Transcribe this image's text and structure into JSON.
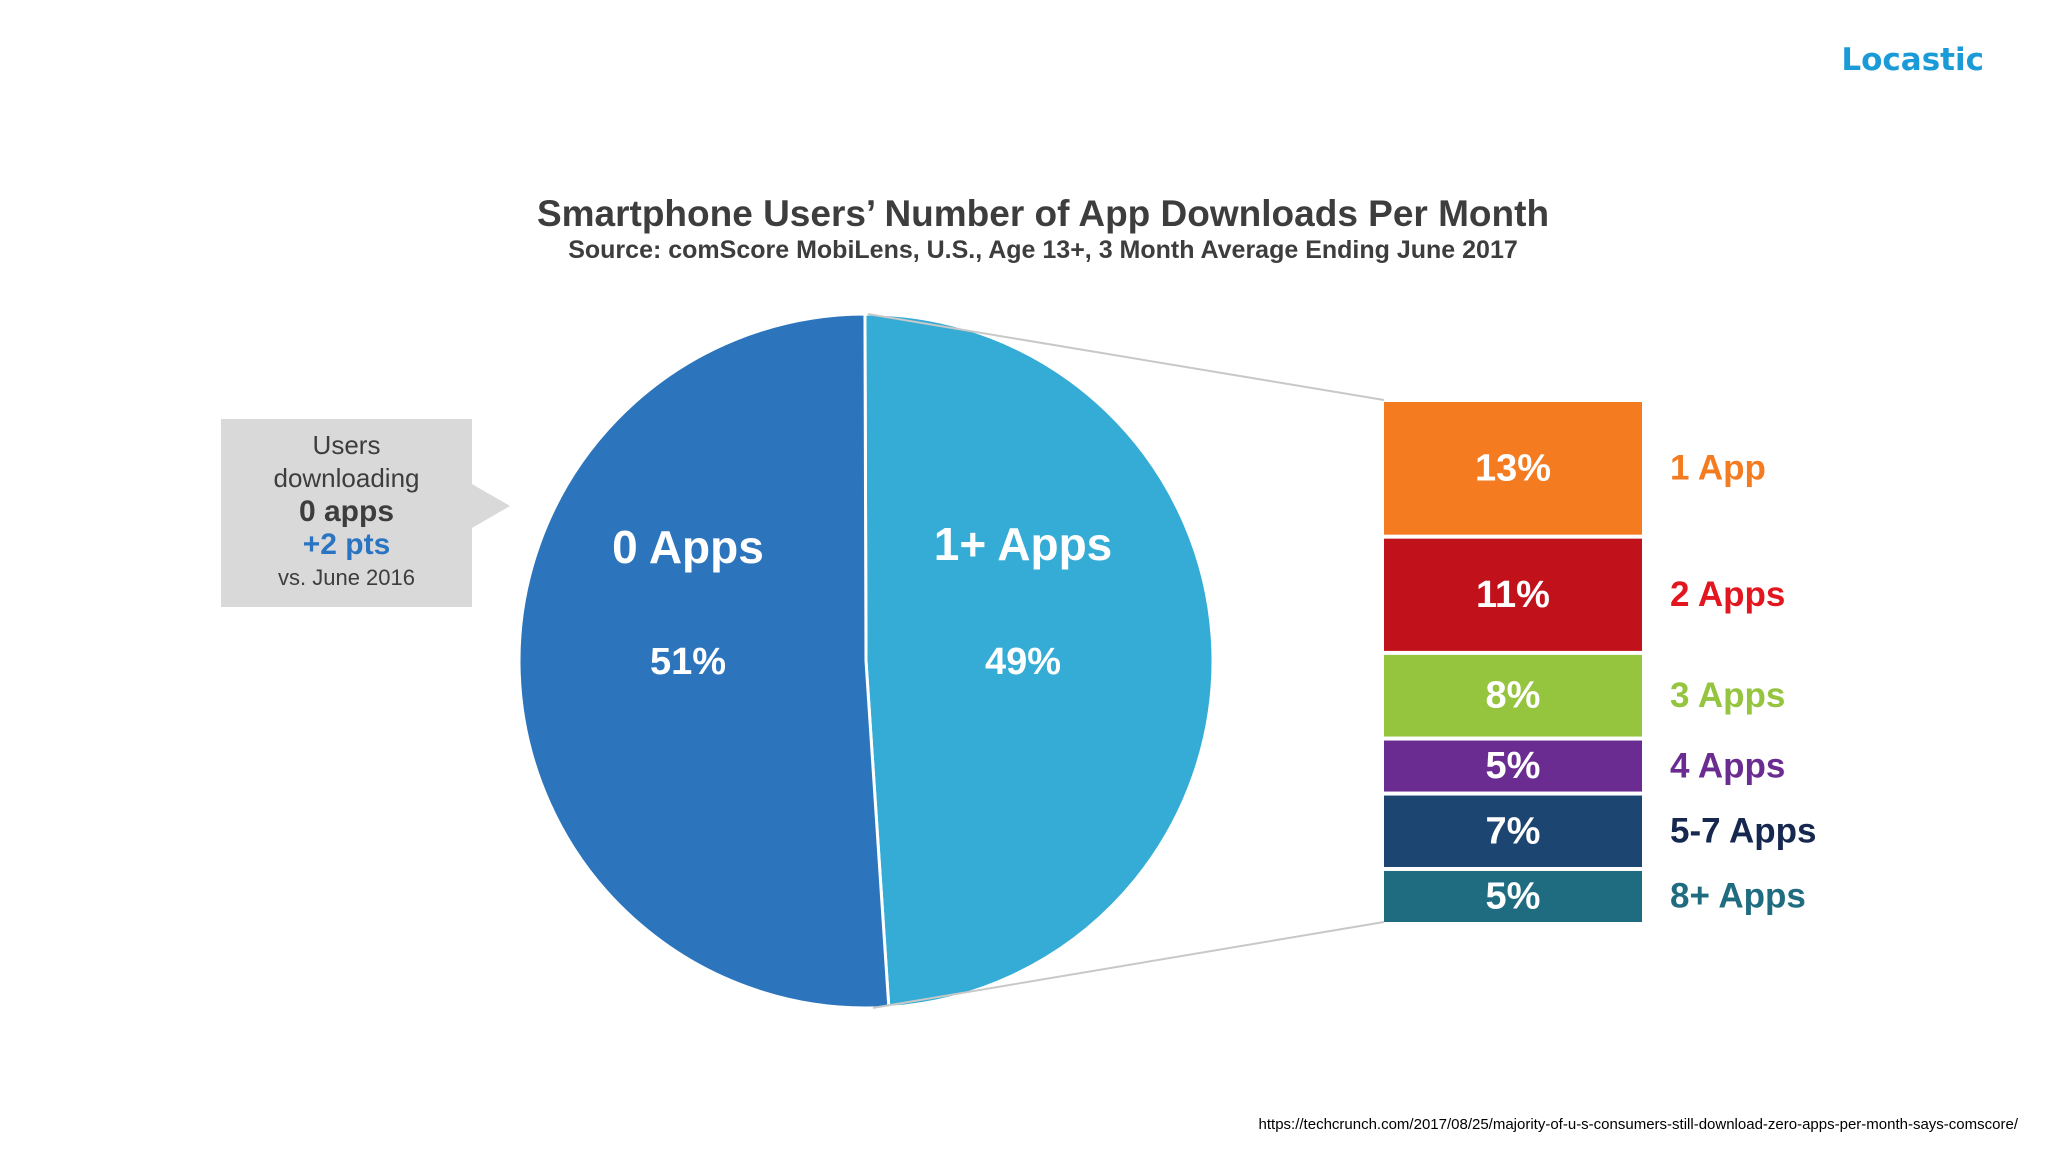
{
  "brand": "Locastic",
  "source_url": "https://techcrunch.com/2017/08/25/majority-of-u-s-consumers-still-download-zero-apps-per-month-says-comscore/",
  "callout": {
    "line1": "Users",
    "line2": "downloading",
    "line3": "0 apps",
    "line4": "+2 pts",
    "line5": "vs. June 2016"
  },
  "colors": {
    "zero_apps": "#2c75bd",
    "one_plus_apps": "#35acd6",
    "brand": "#1a9bd7"
  },
  "chart_data": [
    {
      "type": "pie",
      "title": "Smartphone Users’ Number of App Downloads Per Month",
      "subtitle": "Source: comScore MobiLens, U.S., Age 13+, 3 Month Average Ending June 2017",
      "slices": [
        {
          "label": "0 Apps",
          "value": 51,
          "value_label": "51%",
          "color": "#2c75bd"
        },
        {
          "label": "1+ Apps",
          "value": 49,
          "value_label": "49%",
          "color": "#35acd6"
        }
      ]
    },
    {
      "type": "bar",
      "orientation": "stacked",
      "breakdown_of": "1+ Apps",
      "categories": [
        "1 App",
        "2 Apps",
        "3 Apps",
        "4 Apps",
        "5-7 Apps",
        "8+ Apps"
      ],
      "values": [
        13,
        11,
        8,
        5,
        7,
        5
      ],
      "value_labels": [
        "13%",
        "11%",
        "8%",
        "5%",
        "7%",
        "5%"
      ],
      "colors": [
        "#f47b20",
        "#c1121c",
        "#95c43e",
        "#6a2c91",
        "#1c4571",
        "#1f6b80"
      ],
      "label_colors": [
        "#f47b20",
        "#e3161f",
        "#95c43e",
        "#6a2c91",
        "#16284f",
        "#1f6b80"
      ]
    }
  ]
}
